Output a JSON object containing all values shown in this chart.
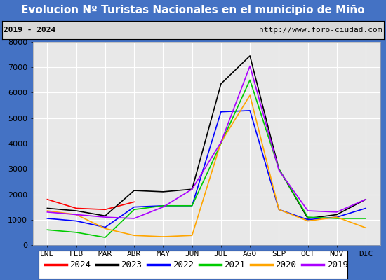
{
  "title": "Evolucion Nº Turistas Nacionales en el municipio de Miño",
  "subtitle_left": "2019 - 2024",
  "subtitle_right": "http://www.foro-ciudad.com",
  "x_labels": [
    "ENE",
    "FEB",
    "MAR",
    "ABR",
    "MAY",
    "JUN",
    "JUL",
    "AGO",
    "SEP",
    "OCT",
    "NOV",
    "DIC"
  ],
  "ylim": [
    0,
    8000
  ],
  "yticks": [
    0,
    1000,
    2000,
    3000,
    4000,
    5000,
    6000,
    7000,
    8000
  ],
  "series": [
    {
      "year": "2024",
      "color": "#ff0000",
      "data": [
        1800,
        1450,
        1400,
        1700,
        null,
        null,
        null,
        null,
        null,
        null,
        null,
        null
      ]
    },
    {
      "year": "2023",
      "color": "#000000",
      "data": [
        1450,
        1350,
        1150,
        2150,
        2100,
        2200,
        6350,
        7450,
        3000,
        1050,
        1200,
        1800
      ]
    },
    {
      "year": "2022",
      "color": "#0000ff",
      "data": [
        1050,
        950,
        700,
        1500,
        1550,
        1550,
        5250,
        5300,
        1400,
        1000,
        1100,
        1450
      ]
    },
    {
      "year": "2021",
      "color": "#00cc00",
      "data": [
        600,
        500,
        300,
        1400,
        1550,
        1550,
        4000,
        6500,
        3000,
        1100,
        1050,
        1050
      ]
    },
    {
      "year": "2020",
      "color": "#ffa500",
      "data": [
        1350,
        1200,
        650,
        380,
        330,
        380,
        4050,
        5900,
        1400,
        950,
        1100,
        680
      ]
    },
    {
      "year": "2019",
      "color": "#aa00ff",
      "data": [
        1300,
        1200,
        1100,
        1050,
        1500,
        2200,
        4050,
        7050,
        2950,
        1350,
        1300,
        1800
      ]
    }
  ],
  "title_bg_color": "#4472c4",
  "title_color": "#ffffff",
  "plot_bg_color": "#e8e8e8",
  "grid_color": "#ffffff",
  "border_color": "#4472c4",
  "subtitle_bg_color": "#d8d8d8",
  "title_fontsize": 11,
  "subtitle_fontsize": 8,
  "axis_label_fontsize": 8,
  "legend_fontsize": 9
}
